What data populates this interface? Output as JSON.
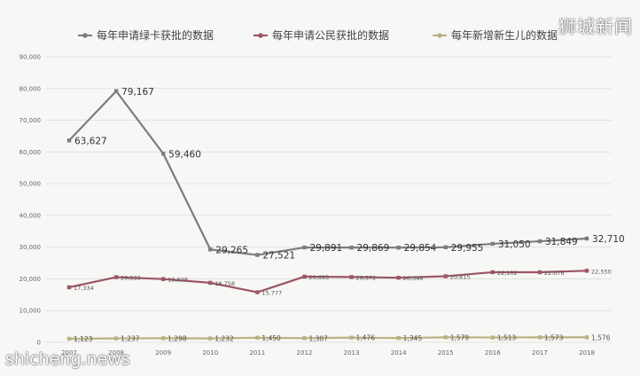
{
  "watermark_top": "狮城新闻",
  "watermark_bottom": "shicheng.news",
  "chart_data": {
    "type": "line",
    "title": "",
    "xlabel": "",
    "ylabel": "",
    "ylim": [
      0,
      90000
    ],
    "yticks": [
      "0",
      "10,000",
      "20,000",
      "30,000",
      "40,000",
      "50,000",
      "60,000",
      "70,000",
      "80,000",
      "90,000"
    ],
    "categories": [
      "2007",
      "2008",
      "2009",
      "2010",
      "2011",
      "2012",
      "2013",
      "2014",
      "2015",
      "2016",
      "2017",
      "2018"
    ],
    "legend_position": "top",
    "grid": true,
    "series": [
      {
        "name": "每年申请绿卡获批的数据",
        "color": "#7f7a80",
        "values": [
          63627,
          79167,
          59460,
          29265,
          27521,
          29891,
          29869,
          29854,
          29955,
          31050,
          31849,
          32710
        ],
        "labels": [
          "63,627",
          "79,167",
          "59,460",
          "29,265",
          "27,521",
          "29,891",
          "29,869",
          "29,854",
          "29,955",
          "31,050",
          "31,849",
          "32,710"
        ]
      },
      {
        "name": "每年申请公民获批的数据",
        "color": "#9c5564",
        "values": [
          17334,
          20533,
          19928,
          18758,
          15777,
          20693,
          20572,
          20348,
          20815,
          22102,
          22076,
          22550
        ],
        "labels": [
          "17,334",
          "20,533",
          "19,928",
          "18,758",
          "15,777",
          "20,693",
          "20,572",
          "20,348",
          "20,815",
          "22,102",
          "22,076",
          "22,550"
        ]
      },
      {
        "name": "每年新增新生儿的数据",
        "color": "#b9b283",
        "values": [
          1123,
          1237,
          1298,
          1232,
          1450,
          1307,
          1476,
          1345,
          1579,
          1513,
          1573,
          1576
        ],
        "labels": [
          "1,123",
          "1,237",
          "1,298",
          "1,232",
          "1,450",
          "1,307",
          "1,476",
          "1,345",
          "1,579",
          "1,513",
          "1,573",
          "1,576"
        ]
      }
    ]
  }
}
